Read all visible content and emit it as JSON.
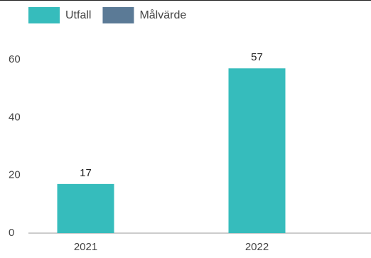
{
  "chart_data": {
    "type": "bar",
    "categories": [
      "2021",
      "2022"
    ],
    "series": [
      {
        "name": "Utfall",
        "color": "#36bcbc",
        "values": [
          17,
          57
        ]
      },
      {
        "name": "Målvärde",
        "color": "#5b7a96",
        "values": [
          null,
          null
        ]
      }
    ],
    "ylim": [
      0,
      60
    ],
    "yticks": [
      0,
      20,
      40,
      60
    ],
    "grid": false
  }
}
